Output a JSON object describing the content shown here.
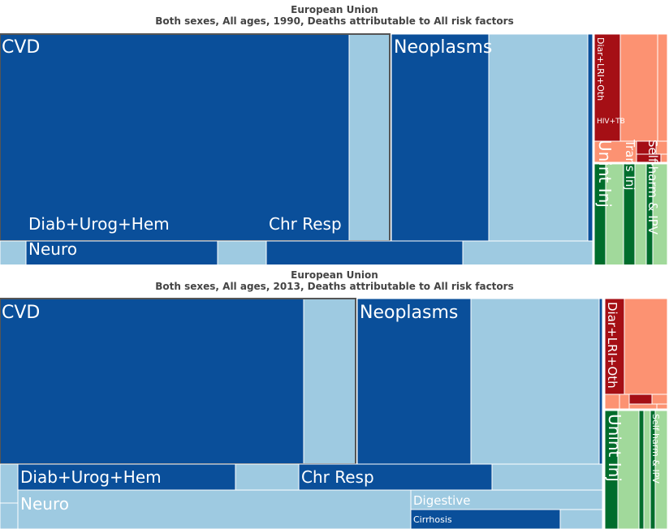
{
  "colors": {
    "ncd_dark": "#0a4f9a",
    "ncd_light": "#9ecae1",
    "cmnn_dark": "#a50f15",
    "cmnn_light": "#fc9272",
    "inj_dark": "#006d2c",
    "inj_light": "#a1d99b",
    "outline": "#555555"
  },
  "chart_data": [
    {
      "type": "treemap",
      "title": "European Union",
      "subtitle": "Both sexes, All ages, 1990, Deaths attributable to All risk factors",
      "labels": [
        "CVD",
        "Neoplasms",
        "Diab+Urog+Hem",
        "Chr Resp",
        "Neuro",
        "Diar+LRI+Oth",
        "HIV+TB",
        "Unint Inj",
        "Trans Inj",
        "Self-harm & IPV"
      ]
    },
    {
      "type": "treemap",
      "title": "European Union",
      "subtitle": "Both sexes, All ages, 2013, Deaths attributable to All risk factors",
      "labels": [
        "CVD",
        "Neoplasms",
        "Diab+Urog+Hem",
        "Chr Resp",
        "Neuro",
        "Digestive",
        "Cirrhosis",
        "Diar+LRI+Oth",
        "Unint Inj",
        "Self-harm & IPV"
      ]
    }
  ]
}
